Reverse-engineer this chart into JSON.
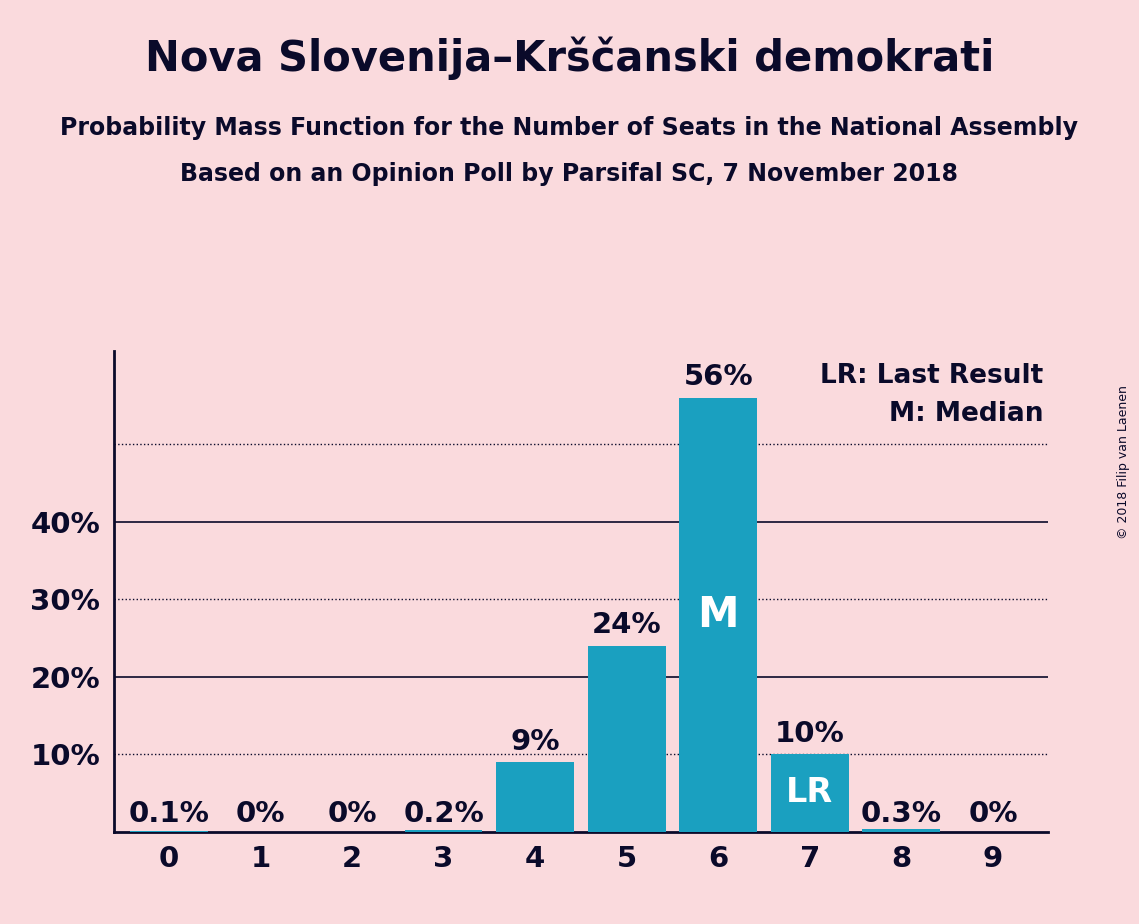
{
  "title": "Nova Slovenija–Krščanski demokrati",
  "subtitle1": "Probability Mass Function for the Number of Seats in the National Assembly",
  "subtitle2": "Based on an Opinion Poll by Parsifal SC, 7 November 2018",
  "copyright": "© 2018 Filip van Laenen",
  "categories": [
    0,
    1,
    2,
    3,
    4,
    5,
    6,
    7,
    8,
    9
  ],
  "values": [
    0.1,
    0.0,
    0.0,
    0.2,
    9.0,
    24.0,
    56.0,
    10.0,
    0.3,
    0.0
  ],
  "bar_color": "#1aa0c0",
  "background_color": "#fadadd",
  "text_color": "#0a0a2a",
  "bar_labels": [
    "0.1%",
    "0%",
    "0%",
    "0.2%",
    "9%",
    "24%",
    "56%",
    "10%",
    "0.3%",
    "0%"
  ],
  "median_bar": 6,
  "lr_bar": 7,
  "legend_lr": "LR: Last Result",
  "legend_m": "M: Median",
  "ylim": [
    0,
    62
  ],
  "yticks": [
    10,
    20,
    30,
    40
  ],
  "ytick_labels": [
    "10%",
    "20%",
    "30%",
    "40%"
  ],
  "grid_dotted": [
    10,
    30,
    50
  ],
  "grid_solid": [
    20,
    40
  ],
  "title_fontsize": 30,
  "subtitle_fontsize": 17,
  "tick_fontsize": 21,
  "legend_fontsize": 19,
  "bar_label_fontsize": 21,
  "inbar_fontsize_M": 30,
  "inbar_fontsize_LR": 24
}
